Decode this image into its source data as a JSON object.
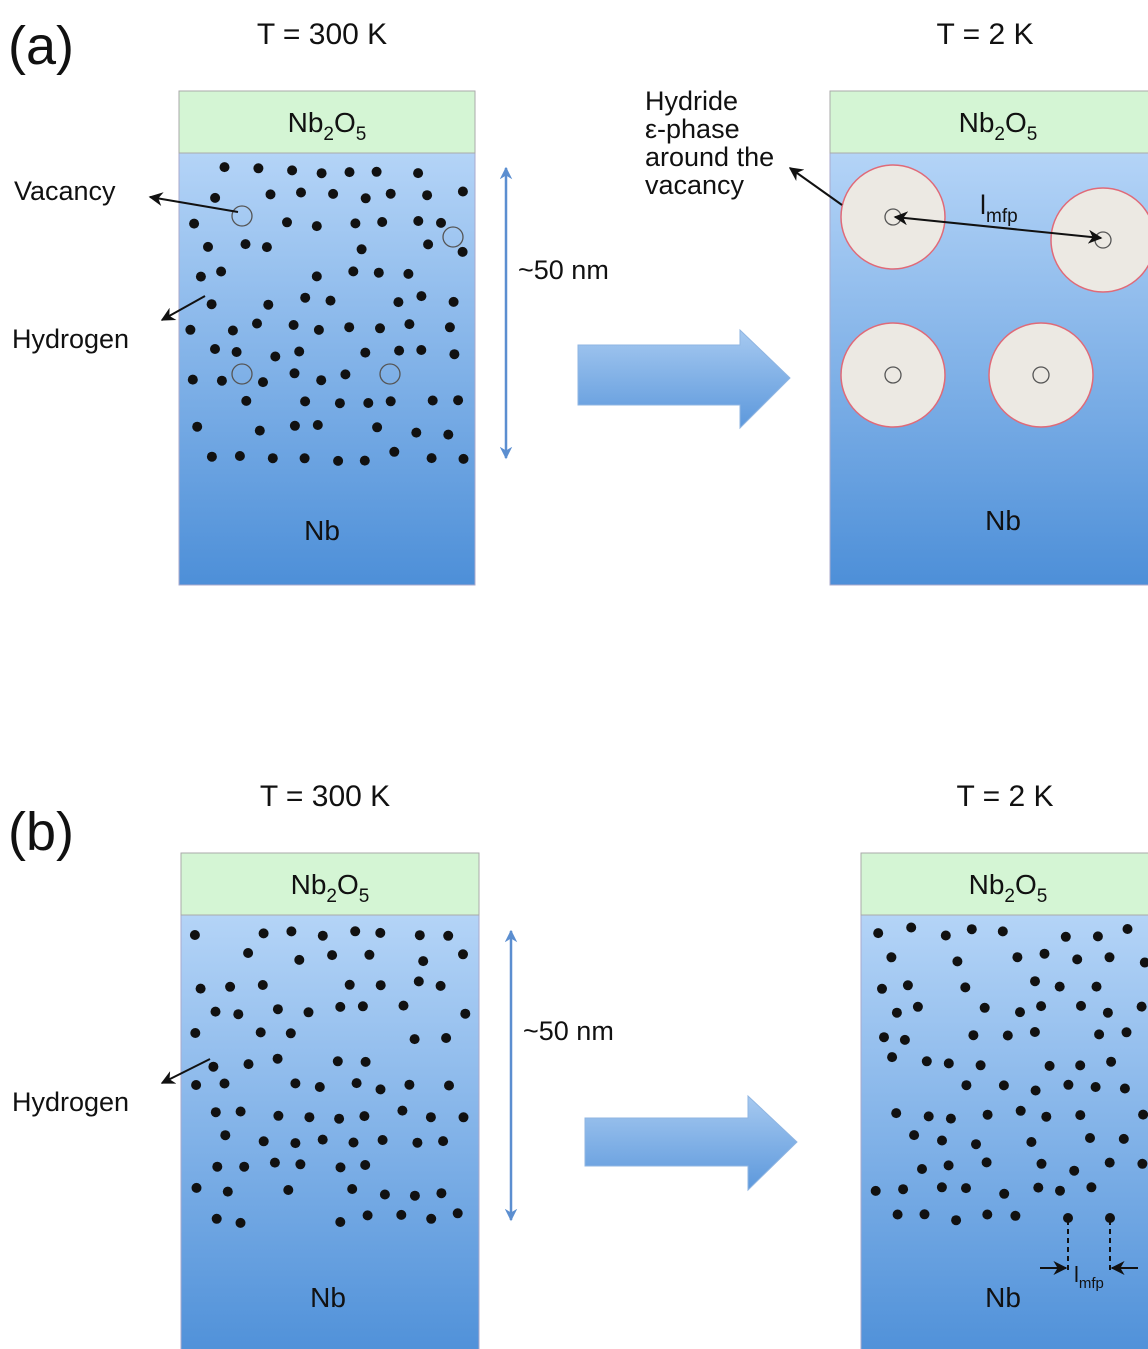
{
  "panel_a": {
    "label": "(a)",
    "left": {
      "temperature": "T = 300 K",
      "oxide": [
        "Nb",
        "2",
        "O",
        "5"
      ],
      "bulk": "Nb"
    },
    "scale": "~50 nm",
    "right": {
      "temperature": "T = 2 K",
      "oxide": [
        "Nb",
        "2",
        "O",
        "5"
      ],
      "bulk": "Nb"
    },
    "labels": {
      "vacancy": "Vacancy",
      "hydrogen": "Hydrogen",
      "hydride": [
        "Hydride",
        "ε-phase",
        "around the",
        "vacancy"
      ],
      "mean_free_path": [
        "l",
        "mfp"
      ]
    }
  },
  "panel_b": {
    "label": "(b)",
    "left": {
      "temperature": "T = 300 K",
      "oxide": [
        "Nb",
        "2",
        "O",
        "5"
      ],
      "bulk": "Nb"
    },
    "scale": "~50 nm",
    "right": {
      "temperature": "T = 2 K",
      "oxide": [
        "Nb",
        "2",
        "O",
        "5"
      ],
      "bulk": "Nb"
    },
    "labels": {
      "hydrogen": "Hydrogen",
      "mean_free_path": [
        "l",
        "mfp"
      ]
    }
  }
}
